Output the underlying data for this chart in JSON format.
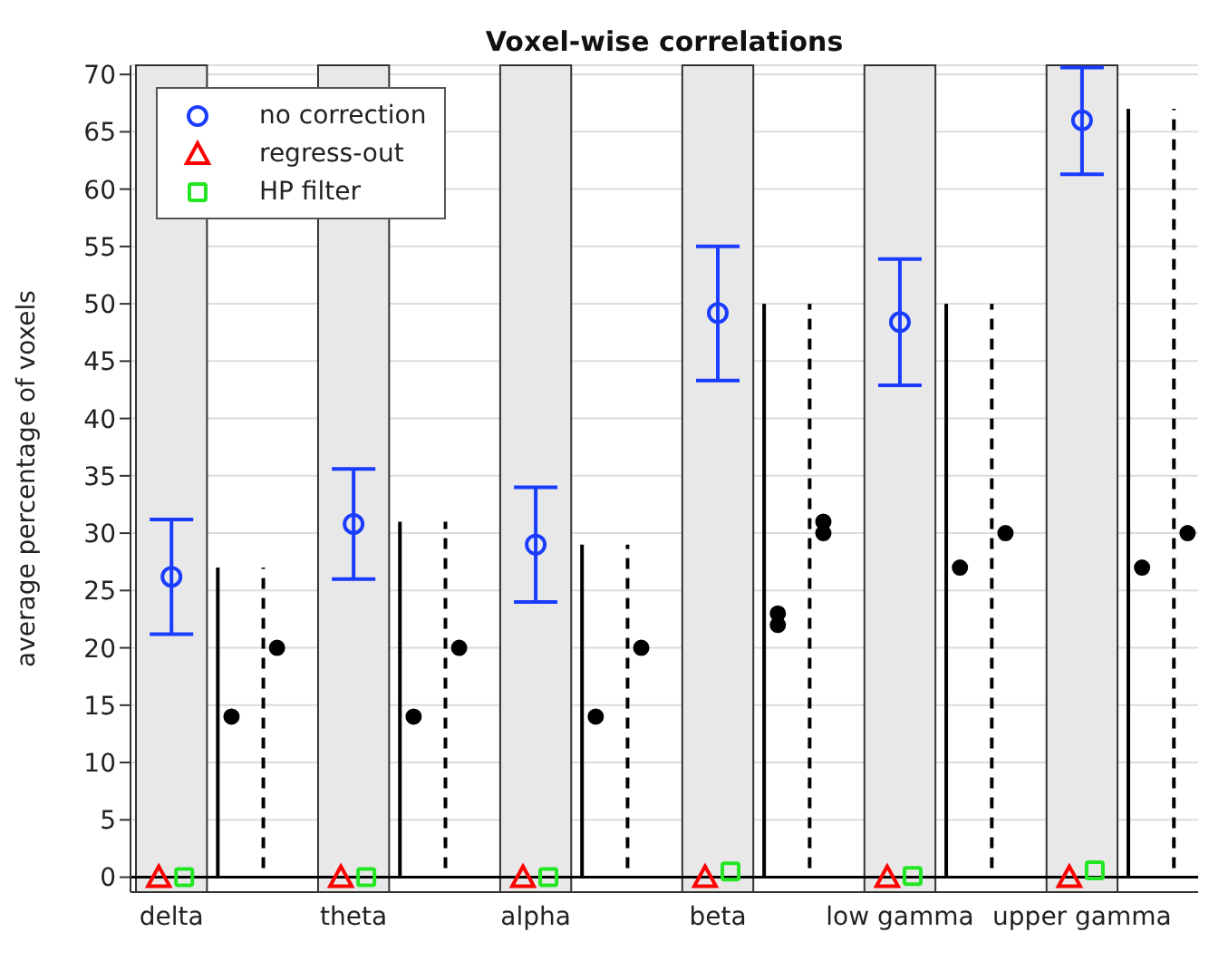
{
  "chart_data": {
    "type": "scatter",
    "title": "Voxel-wise correlations",
    "ylabel": "average percentage of voxels",
    "categories": [
      "delta",
      null,
      null,
      null,
      "theta",
      null,
      null,
      null,
      "alpha",
      null,
      null,
      null,
      "beta",
      null,
      null,
      null,
      "low gamma",
      null,
      null,
      null,
      "upper gamma",
      null,
      null
    ],
    "ylim": [
      -1.3,
      70.8
    ],
    "yticks": [
      0,
      5,
      10,
      15,
      20,
      25,
      30,
      35,
      40,
      45,
      50,
      55,
      60,
      65,
      70
    ],
    "grid": "y",
    "legend": "top left",
    "series": [
      {
        "name": "no correction",
        "color": "#1a3cff",
        "marker": "circle",
        "values": [
          26.2,
          null,
          null,
          null,
          30.8,
          null,
          null,
          null,
          29,
          null,
          null,
          null,
          49.2,
          null,
          null,
          null,
          48.4,
          null,
          null,
          null,
          66,
          null,
          null
        ],
        "errors": [
          [
            21.2,
            31.2
          ],
          null,
          null,
          null,
          [
            26,
            35.6
          ],
          null,
          null,
          null,
          [
            24,
            34
          ],
          null,
          null,
          null,
          [
            43.3,
            55
          ],
          null,
          null,
          null,
          [
            42.9,
            53.9
          ],
          null,
          null,
          null,
          [
            61.3,
            70.6
          ],
          null,
          null
        ]
      },
      {
        "name": "regress-out",
        "color": "#ff0000",
        "marker": "triangle",
        "values": [
          0,
          null,
          null,
          null,
          0,
          null,
          null,
          null,
          0,
          null,
          null,
          null,
          0,
          null,
          null,
          null,
          0,
          null,
          null,
          null,
          0,
          null,
          null
        ]
      },
      {
        "name": "HP filter",
        "color": "#22e622",
        "marker": "square",
        "values": [
          0,
          null,
          null,
          null,
          0,
          null,
          null,
          null,
          0,
          null,
          null,
          null,
          0.5,
          null,
          null,
          null,
          0.1,
          null,
          null,
          null,
          0.6,
          null,
          null
        ]
      },
      {
        "type": "bar",
        "color": "#000000",
        "line_style": "solid",
        "values": [
          null,
          27,
          null,
          null,
          null,
          31,
          null,
          null,
          null,
          29,
          null,
          null,
          null,
          50,
          null,
          null,
          null,
          50,
          null,
          null,
          null,
          67,
          null
        ]
      },
      {
        "type": "bar",
        "color": "#000000",
        "line_style": "dashed",
        "values": [
          null,
          null,
          27,
          null,
          null,
          null,
          31,
          null,
          null,
          null,
          29,
          null,
          null,
          null,
          50,
          null,
          null,
          null,
          50,
          null,
          null,
          null,
          67
        ]
      },
      {
        "color": "#000000",
        "marker": "circle",
        "values": [
          null,
          14,
          20,
          null,
          null,
          14,
          20,
          null,
          null,
          14,
          20,
          null,
          null,
          22,
          30,
          null,
          null,
          27,
          30,
          null,
          null,
          27,
          30
        ]
      },
      {
        "color": "#000000",
        "marker": "circle",
        "values": [
          null,
          null,
          null,
          null,
          null,
          null,
          null,
          null,
          null,
          null,
          null,
          null,
          null,
          23,
          31,
          null,
          null,
          null,
          null,
          null,
          null,
          null,
          null
        ]
      }
    ],
    "ref_lines": [
      {
        "axis": "y",
        "value": 0,
        "color": "#000000"
      }
    ]
  }
}
